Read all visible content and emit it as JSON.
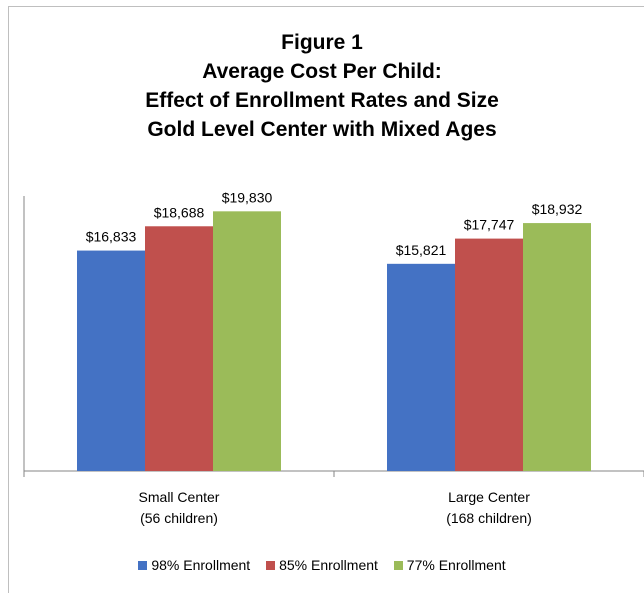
{
  "chart_data": {
    "type": "bar",
    "title_lines": [
      "Figure 1",
      "Average Cost Per Child:",
      "Effect of Enrollment Rates and Size",
      "Gold Level Center with Mixed Ages"
    ],
    "categories": [
      [
        "Small Center",
        "(56 children)"
      ],
      [
        "Large Center",
        "(168 children)"
      ]
    ],
    "series": [
      {
        "name": "98% Enrollment",
        "color": "#4472c4",
        "values": [
          16833,
          15821
        ],
        "labels": [
          "$16,833",
          "$15,821"
        ]
      },
      {
        "name": "85% Enrollment",
        "color": "#c0504d",
        "values": [
          18688,
          17747
        ],
        "labels": [
          "$18,688",
          "$17,747"
        ]
      },
      {
        "name": "77% Enrollment",
        "color": "#9bbb59",
        "values": [
          19830,
          18932
        ],
        "labels": [
          "$19,830",
          "$18,932"
        ]
      }
    ],
    "ylim": [
      0,
      21000
    ],
    "y_axis_visible": false,
    "grid": false,
    "legend_position": "bottom"
  }
}
